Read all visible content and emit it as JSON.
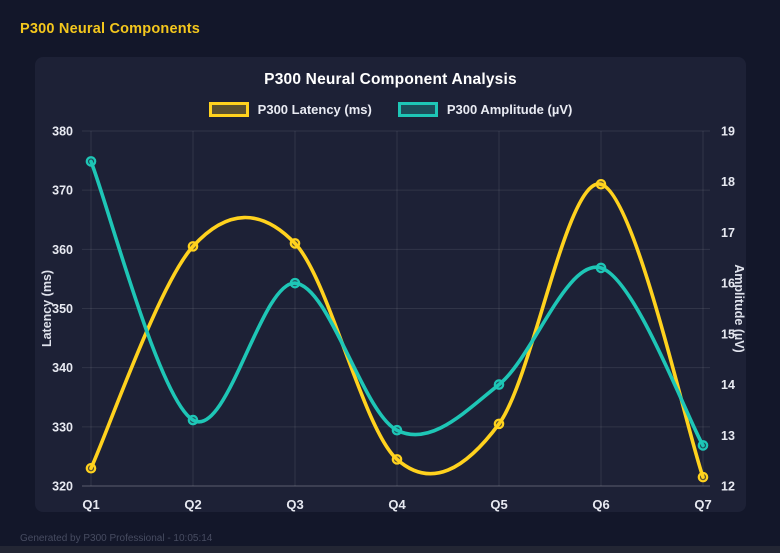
{
  "page": {
    "header_title": "P300 Neural Components",
    "footer": "Generated by P300 Professional - 10:05:14"
  },
  "colors": {
    "page_bg": "#13172a",
    "card_bg": "#1d2136",
    "header_text": "#f4c71d",
    "title_text": "#ffffff",
    "axis_text": "#e7e9f1",
    "grid": "rgba(255,255,255,0.09)",
    "axis_line": "rgba(255,255,255,0.22)",
    "footer_text": "#474c61",
    "latency": "#ffd21e",
    "amplitude": "#1ec6b6"
  },
  "chart_data": {
    "type": "line",
    "title": "P300 Neural Component Analysis",
    "line_style": "smooth",
    "grid": true,
    "legend_position": "top",
    "categories": [
      "Q1",
      "Q2",
      "Q3",
      "Q4",
      "Q5",
      "Q6",
      "Q7"
    ],
    "series": [
      {
        "name": "P300 Latency (ms)",
        "axis": "left",
        "color": "#ffd21e",
        "marker_fill": "rgba(255,210,30,0.28)",
        "values": [
          323,
          360.5,
          361,
          324.5,
          330.5,
          371,
          321.5
        ]
      },
      {
        "name": "P300 Amplitude (µV)",
        "axis": "right",
        "color": "#1ec6b6",
        "marker_fill": "rgba(30,198,182,0.28)",
        "values": [
          18.4,
          13.3,
          16.0,
          13.1,
          14.0,
          16.3,
          12.8
        ]
      }
    ],
    "left_axis": {
      "label": "Latency (ms)",
      "min": 320,
      "max": 380,
      "ticks": [
        320,
        330,
        340,
        350,
        360,
        370,
        380
      ]
    },
    "right_axis": {
      "label": "Amplitude (µV)",
      "min": 12,
      "max": 19,
      "ticks": [
        12,
        13,
        14,
        15,
        16,
        17,
        18,
        19
      ]
    }
  }
}
